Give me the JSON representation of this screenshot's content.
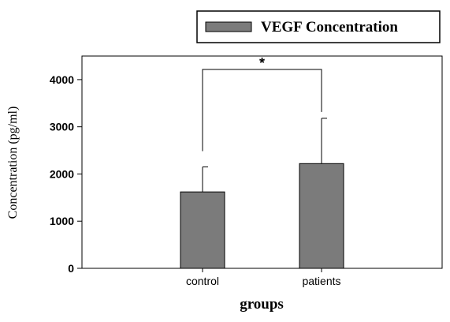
{
  "chart_data": {
    "type": "bar",
    "categories": [
      "control",
      "patients"
    ],
    "series": [
      {
        "name": "VEGF Concentration",
        "values": [
          1620,
          2220
        ],
        "error_upper": [
          2150,
          3180
        ]
      }
    ],
    "xlabel": "groups",
    "ylabel": "Concentration (pg/ml)",
    "ylim": [
      0,
      4500
    ],
    "yticks": [
      0,
      1000,
      2000,
      3000,
      4000
    ],
    "ytick_labels": [
      "0",
      "1000",
      "2000",
      "3000",
      "4000"
    ],
    "grid": false,
    "legend_position": "top-right",
    "bar_color": "#7b7b7b",
    "annotations": [
      {
        "text": "*",
        "between": [
          "control",
          "patients"
        ]
      }
    ]
  }
}
